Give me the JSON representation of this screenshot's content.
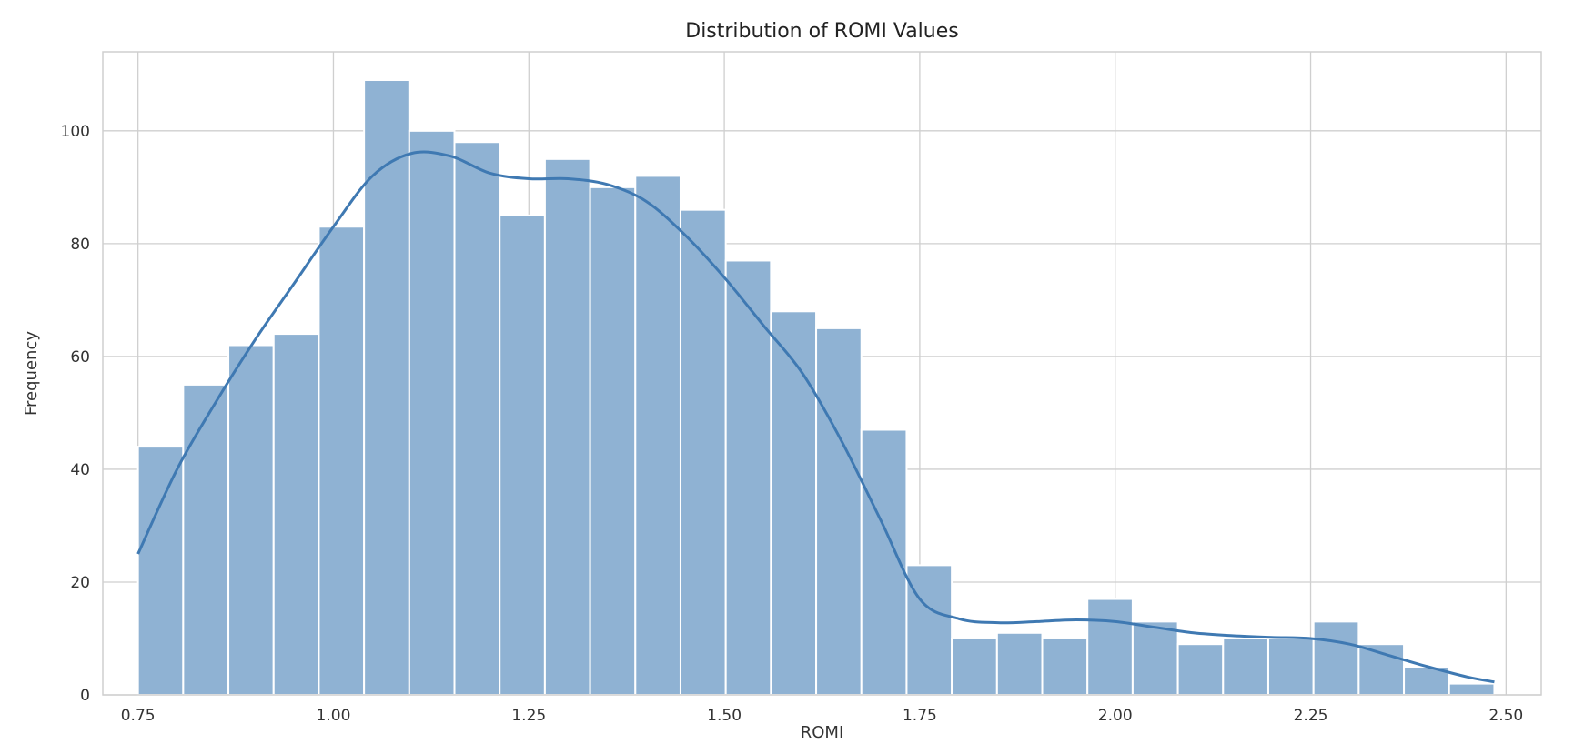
{
  "chart_data": {
    "type": "bar",
    "subtype": "histogram",
    "title": "Distribution of ROMI Values",
    "xlabel": "ROMI",
    "ylabel": "Frequency",
    "xlim": [
      0.705,
      2.545
    ],
    "ylim": [
      0,
      114
    ],
    "grid": true,
    "legend": "none",
    "xticks": [
      0.75,
      1.0,
      1.25,
      1.5,
      1.75,
      2.0,
      2.25,
      2.5
    ],
    "xtick_labels": [
      "0.75",
      "1.00",
      "1.25",
      "1.50",
      "1.75",
      "2.00",
      "2.25",
      "2.50"
    ],
    "yticks": [
      0,
      20,
      40,
      60,
      80,
      100
    ],
    "ytick_labels": [
      "0",
      "20",
      "40",
      "60",
      "80",
      "100"
    ],
    "bins": {
      "start": 0.75,
      "end": 2.485,
      "counts": [
        44,
        55,
        62,
        64,
        83,
        109,
        100,
        98,
        85,
        95,
        90,
        92,
        86,
        77,
        68,
        65,
        47,
        23,
        10,
        11,
        10,
        17,
        13,
        9,
        10,
        10,
        13,
        9,
        5,
        2
      ]
    },
    "kde": {
      "x": [
        0.75,
        0.8,
        0.85,
        0.9,
        0.95,
        1.0,
        1.05,
        1.1,
        1.15,
        1.2,
        1.25,
        1.3,
        1.35,
        1.4,
        1.45,
        1.5,
        1.55,
        1.6,
        1.65,
        1.7,
        1.75,
        1.8,
        1.85,
        1.9,
        1.95,
        2.0,
        2.05,
        2.1,
        2.15,
        2.2,
        2.25,
        2.3,
        2.35,
        2.4,
        2.45,
        2.485
      ],
      "y": [
        25,
        40,
        52,
        63,
        73,
        83,
        92,
        96,
        95.5,
        92.5,
        91.5,
        91.5,
        90.5,
        87.5,
        81.5,
        74,
        65.5,
        57,
        45,
        31,
        17,
        13.5,
        12.8,
        13,
        13.3,
        13,
        12,
        11,
        10.5,
        10.2,
        10,
        9,
        7,
        5,
        3.2,
        2.3
      ]
    },
    "colors": {
      "bar_fill": "#8fb2d3",
      "bar_edge": "#ffffff",
      "kde_line": "#3f79b2",
      "grid": "#cfcfcf",
      "frame": "#cfcfcf"
    }
  }
}
